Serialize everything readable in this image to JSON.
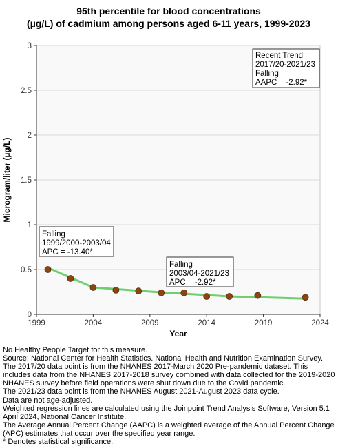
{
  "chart_data": {
    "type": "line",
    "title_lines": [
      "95th percentile for blood concentrations",
      "(µg/L) of cadmium among persons aged 6-11 years, 1999-2023"
    ],
    "xlabel": "Year",
    "ylabel": "Microgram/liter (µg/L)",
    "xlim": [
      1999,
      2024
    ],
    "ylim": [
      0,
      3
    ],
    "x_ticks": [
      1999,
      2004,
      2009,
      2014,
      2019,
      2024
    ],
    "y_ticks": [
      0,
      0.5,
      1,
      1.5,
      2,
      2.5,
      3
    ],
    "y_tick_labels": [
      "0",
      "0.5",
      "1",
      "1.5",
      "2",
      "2.5",
      "3"
    ],
    "grid": "horizontal",
    "series": [
      {
        "color": "#6fcf6f",
        "marker_color": "#8b4513",
        "points": [
          {
            "x": 2000,
            "y": 0.5
          },
          {
            "x": 2002,
            "y": 0.4
          },
          {
            "x": 2004,
            "y": 0.3
          },
          {
            "x": 2006,
            "y": 0.27
          },
          {
            "x": 2008,
            "y": 0.26
          },
          {
            "x": 2010,
            "y": 0.24
          },
          {
            "x": 2012,
            "y": 0.24
          },
          {
            "x": 2014,
            "y": 0.2
          },
          {
            "x": 2016,
            "y": 0.2
          },
          {
            "x": 2018.5,
            "y": 0.21
          },
          {
            "x": 2022.7,
            "y": 0.19
          }
        ],
        "trend": [
          {
            "x": 2000,
            "y": 0.52
          },
          {
            "x": 2004,
            "y": 0.3
          },
          {
            "x": 2010,
            "y": 0.245
          },
          {
            "x": 2016,
            "y": 0.2
          },
          {
            "x": 2022.7,
            "y": 0.175
          }
        ]
      }
    ],
    "annotations": [
      {
        "lines": [
          "Falling",
          "1999/2000-2003/04",
          "APC = -13.40*"
        ]
      },
      {
        "lines": [
          "Falling",
          "2003/04-2021/23",
          "APC = -2.92*"
        ]
      },
      {
        "lines": [
          "Recent Trend",
          "2017/20-2021/23",
          "Falling",
          "AAPC = -2.92*"
        ]
      }
    ]
  },
  "footnotes": [
    "No Healthy People Target for this measure.",
    "Source: National Center for Health Statistics. National Health and Nutrition Examination Survey.",
    "The 2017/20 data point is from the NHANES 2017-March 2020 Pre-pandemic dataset. This includes data from the NHANES 2017-2018 survey combined with data collected for the 2019-2020 NHANES survey before field operations were shut down due to the Covid pandemic.",
    "The 2021/23 data point is from the NHANES August 2021-August 2023 data cycle.",
    "Data are not age-adjusted.",
    "Weighted regression lines are calculated using the Joinpoint Trend Analysis Software, Version 5.1 April 2024, National Cancer Institute.",
    "The Average Annual Percent Change (AAPC) is a weighted average of the Annual Percent Change (APC) estimates that occur over the specified year range.",
    "* Denotes statistical significance."
  ]
}
